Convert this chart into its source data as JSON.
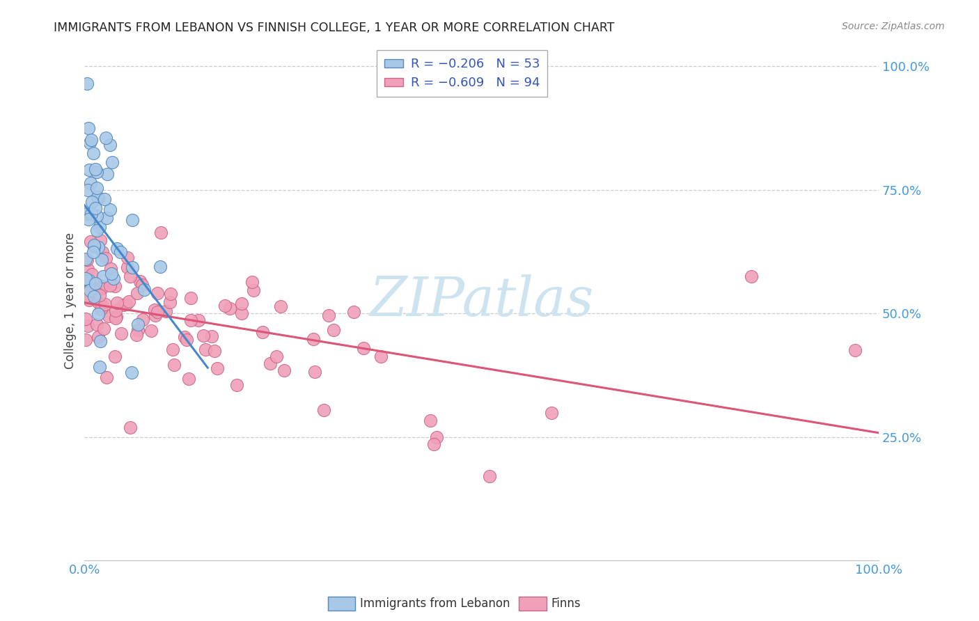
{
  "title": "IMMIGRANTS FROM LEBANON VS FINNISH COLLEGE, 1 YEAR OR MORE CORRELATION CHART",
  "source": "Source: ZipAtlas.com",
  "ylabel": "College, 1 year or more",
  "legend_label1": "Immigrants from Lebanon",
  "legend_label2": "Finns",
  "scatter_lebanon": {
    "color": "#a8c8e8",
    "edge_color": "#5588bb",
    "R": -0.206,
    "N": 53
  },
  "scatter_finns": {
    "color": "#f0a0b8",
    "edge_color": "#cc6688",
    "R": -0.609,
    "N": 94
  },
  "xlim": [
    0.0,
    1.0
  ],
  "ylim": [
    0.0,
    1.05
  ],
  "background_color": "#ffffff",
  "grid_color": "#cccccc",
  "title_color": "#222222",
  "axis_label_color": "#4499dd",
  "watermark_text": "ZIPatlas",
  "watermark_color": "#cde4f0",
  "trendline_lebanon_color": "#4488cc",
  "trendline_finns_color": "#dd5577",
  "trendline_dashed_color": "#bbbbbb"
}
